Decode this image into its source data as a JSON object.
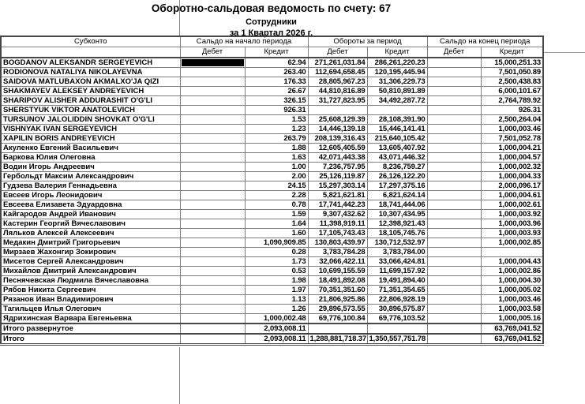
{
  "report": {
    "title": "Оборотно-сальдовая ведомость по счету: 67",
    "subtitle": "Сотрудники",
    "period": "за 1 Квартал 2026 г."
  },
  "table": {
    "columns": {
      "subconto": "Субконто",
      "opening": "Сальдо на начало периода",
      "turnover": "Обороты за период",
      "closing": "Сальдо на конец периода",
      "debit": "Дебет",
      "credit": "Кредит"
    },
    "selected_cell": {
      "row": 0,
      "col": 1
    },
    "total_row_indexes": [
      28,
      29
    ],
    "rows": [
      [
        "BOGDANOV ALEKSANDR SERGEYEVICH",
        "",
        "62.94",
        "271,261,031.84",
        "286,261,220.23",
        "",
        "15,000,251.33"
      ],
      [
        "RODIONOVA NATALIYA NIKOLAYEVNA",
        "",
        "263.40",
        "112,694,658.45",
        "120,195,445.94",
        "",
        "7,501,050.89"
      ],
      [
        "SAIDOVA MATLUBAXON AKMALXO'JA QIZI",
        "",
        "176.33",
        "28,805,967.23",
        "31,306,229.73",
        "",
        "2,500,438.83"
      ],
      [
        "SHAKMAYEV ALEKSEY ANDREYEVICH",
        "",
        "26.67",
        "44,810,816.89",
        "50,810,891.89",
        "",
        "6,000,101.67"
      ],
      [
        "SHARIPOV ALISHER ADDURASHIT O'G'LI",
        "",
        "326.15",
        "31,727,823.95",
        "34,492,287.72",
        "",
        "2,764,789.92"
      ],
      [
        "SHERSTYUK VIKTOR ANATOLEVICH",
        "",
        "926.31",
        "",
        "",
        "",
        "926.31"
      ],
      [
        "TURSUNOV JALOLIDDIN SHOVKAT O'G'LI",
        "",
        "1.53",
        "25,608,129.39",
        "28,108,391.90",
        "",
        "2,500,264.04"
      ],
      [
        "VISHNYAK IVAN SERGEYEVICH",
        "",
        "1.23",
        "14,446,139.18",
        "15,446,141.41",
        "",
        "1,000,003.46"
      ],
      [
        "XAPILIN BORIS ANDREYEVICH",
        "",
        "263.79",
        "208,139,316.43",
        "215,640,105.42",
        "",
        "7,501,052.78"
      ],
      [
        "Акуленко Евгений Васильевич",
        "",
        "1.88",
        "12,605,405.59",
        "13,605,407.92",
        "",
        "1,000,004.21"
      ],
      [
        "Баркова Юлия Олеговна",
        "",
        "1.63",
        "42,071,443.38",
        "43,071,446.32",
        "",
        "1,000,004.57"
      ],
      [
        "Водин Игорь Андреевич",
        "",
        "1.00",
        "7,236,757.95",
        "8,236,759.27",
        "",
        "1,000,002.32"
      ],
      [
        "Гербольдт Максим Александрович",
        "",
        "2.00",
        "25,126,119.87",
        "26,126,122.20",
        "",
        "1,000,004.33"
      ],
      [
        "Гудзева Валерия Геннадьевна",
        "",
        "24.15",
        "15,297,303.14",
        "17,297,375.16",
        "",
        "2,000,096.17"
      ],
      [
        "Евсеев Игорь Леонидович",
        "",
        "2.28",
        "5,821,621.81",
        "6,821,624.14",
        "",
        "1,000,004.61"
      ],
      [
        "Евсеева Елизавета Эдуардовна",
        "",
        "0.78",
        "17,741,442.23",
        "18,741,444.06",
        "",
        "1,000,002.61"
      ],
      [
        "Кайгародов Андрей Иванович",
        "",
        "1.59",
        "9,307,432.62",
        "10,307,434.95",
        "",
        "1,000,003.92"
      ],
      [
        "Кастерин Георгий Вячеславович",
        "",
        "1.64",
        "11,398,919.11",
        "12,398,921.43",
        "",
        "1,000,003.96"
      ],
      [
        "Ляльков Алексей Алексеевич",
        "",
        "1.60",
        "17,105,743.43",
        "18,105,745.76",
        "",
        "1,000,003.93"
      ],
      [
        "Медакин Дмитрий Григорьевич",
        "",
        "1,090,909.85",
        "130,803,439.97",
        "130,712,532.97",
        "",
        "1,000,002.85"
      ],
      [
        "Мирзаев Жахонгир Зокирович",
        "",
        "0.28",
        "3,783,784.28",
        "3,783,784.00",
        "",
        ""
      ],
      [
        "Мисетов Сергей Александрович",
        "",
        "1.73",
        "32,066,422.11",
        "33,066,424.81",
        "",
        "1,000,004.43"
      ],
      [
        "Михайлов Дмитрий Александрович",
        "",
        "0.53",
        "10,699,155.59",
        "11,699,157.92",
        "",
        "1,000,002.86"
      ],
      [
        "Песнячевская Людмила Вячеславовна",
        "",
        "1.98",
        "18,491,892.08",
        "19,491,894.40",
        "",
        "1,000,004.30"
      ],
      [
        "Рябов Никита Сергеевич",
        "",
        "1.97",
        "70,351,351.60",
        "71,351,354.65",
        "",
        "1,000,005.02"
      ],
      [
        "Рязанов Иван Владимирович",
        "",
        "1.13",
        "21,806,925.86",
        "22,806,928.19",
        "",
        "1,000,003.46"
      ],
      [
        "Тагильцев Илья Олегович",
        "",
        "1.26",
        "29,896,573.55",
        "30,896,575.87",
        "",
        "1,000,003.58"
      ],
      [
        "Ядрихинская Варвара Евгеньевна",
        "",
        "1,000,002.48",
        "69,776,100.84",
        "69,776,103.52",
        "",
        "1,000,005.16"
      ],
      [
        "Итого развернутое",
        "",
        "2,093,008.11",
        "",
        "",
        "",
        "63,769,041.52"
      ],
      [
        "Итого",
        "",
        "2,093,008.11",
        "1,288,881,718.37",
        "1,350,557,751.78",
        "",
        "63,769,041.52"
      ]
    ]
  }
}
